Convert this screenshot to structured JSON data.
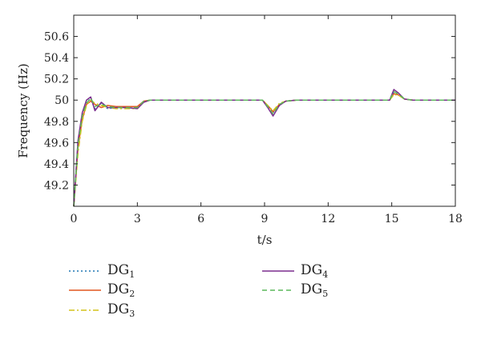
{
  "chart_data": {
    "type": "line",
    "xlabel": "t/s",
    "ylabel": "Frequency (Hz)",
    "xlim": [
      0,
      18
    ],
    "ylim": [
      49.0,
      50.8
    ],
    "xticks": [
      0,
      3,
      6,
      9,
      12,
      15,
      18
    ],
    "yticks": [
      49.2,
      49.4,
      49.6,
      49.8,
      50,
      50.2,
      50.4,
      50.6
    ],
    "grid": false,
    "legend_position": "below",
    "series": [
      {
        "name": "DG1",
        "base": "DG",
        "sub": "1",
        "color": "#1f77b4",
        "dash": "2,3",
        "x": [
          0,
          0.2,
          0.4,
          0.6,
          0.8,
          1.0,
          1.3,
          1.6,
          2.0,
          2.5,
          3.0,
          3.3,
          3.6,
          4.5,
          6.0,
          7.5,
          8.9,
          9.15,
          9.4,
          9.7,
          10.0,
          10.5,
          12.0,
          14.0,
          14.9,
          15.1,
          15.3,
          15.6,
          16.0,
          18.0
        ],
        "y": [
          49.0,
          49.6,
          49.85,
          49.98,
          50.01,
          49.92,
          49.97,
          49.92,
          49.93,
          49.93,
          49.92,
          49.98,
          50.0,
          50.0,
          50.0,
          50.0,
          50.0,
          49.94,
          49.88,
          49.96,
          49.99,
          50.0,
          50.0,
          50.0,
          50.0,
          50.07,
          50.06,
          50.01,
          50.0,
          50.0
        ]
      },
      {
        "name": "DG2",
        "base": "DG",
        "sub": "2",
        "color": "#e2571e",
        "dash": "",
        "x": [
          0,
          0.2,
          0.4,
          0.6,
          0.8,
          1.0,
          1.3,
          1.6,
          2.0,
          2.5,
          3.0,
          3.3,
          3.6,
          4.5,
          6.0,
          7.5,
          8.9,
          9.15,
          9.4,
          9.7,
          10.0,
          10.5,
          12.0,
          14.0,
          14.9,
          15.1,
          15.3,
          15.6,
          16.0,
          18.0
        ],
        "y": [
          49.0,
          49.55,
          49.82,
          49.96,
          49.99,
          49.96,
          49.93,
          49.95,
          49.94,
          49.94,
          49.94,
          49.99,
          50.0,
          50.0,
          50.0,
          50.0,
          50.0,
          49.95,
          49.89,
          49.96,
          49.99,
          50.0,
          50.0,
          50.0,
          50.0,
          50.06,
          50.05,
          50.01,
          50.0,
          50.0
        ]
      },
      {
        "name": "DG3",
        "base": "DG",
        "sub": "3",
        "color": "#d4c21a",
        "dash": "7,3,2,3",
        "x": [
          0,
          0.2,
          0.4,
          0.6,
          0.8,
          1.0,
          1.3,
          1.6,
          2.0,
          2.5,
          3.0,
          3.3,
          3.6,
          4.5,
          6.0,
          7.5,
          8.9,
          9.15,
          9.4,
          9.7,
          10.0,
          10.5,
          12.0,
          14.0,
          14.9,
          15.1,
          15.3,
          15.6,
          16.0,
          18.0
        ],
        "y": [
          49.0,
          49.5,
          49.8,
          49.95,
          50.0,
          49.97,
          49.95,
          49.93,
          49.92,
          49.92,
          49.92,
          49.98,
          50.0,
          50.0,
          50.0,
          50.0,
          50.0,
          49.95,
          49.9,
          49.97,
          49.99,
          50.0,
          50.0,
          50.0,
          50.0,
          50.05,
          50.05,
          50.01,
          50.0,
          50.0
        ]
      },
      {
        "name": "DG4",
        "base": "DG",
        "sub": "4",
        "color": "#7b2d8e",
        "dash": "",
        "x": [
          0,
          0.2,
          0.4,
          0.6,
          0.8,
          1.0,
          1.3,
          1.6,
          2.0,
          2.5,
          3.0,
          3.3,
          3.6,
          4.5,
          6.0,
          7.5,
          8.9,
          9.15,
          9.4,
          9.7,
          10.0,
          10.5,
          12.0,
          14.0,
          14.9,
          15.1,
          15.3,
          15.6,
          16.0,
          18.0
        ],
        "y": [
          49.0,
          49.62,
          49.88,
          50.0,
          50.03,
          49.9,
          49.98,
          49.93,
          49.93,
          49.93,
          49.92,
          49.98,
          50.0,
          50.0,
          50.0,
          50.0,
          50.0,
          49.93,
          49.85,
          49.95,
          49.99,
          50.0,
          50.0,
          50.0,
          50.0,
          50.1,
          50.07,
          50.01,
          50.0,
          50.0
        ]
      },
      {
        "name": "DG5",
        "base": "DG",
        "sub": "5",
        "color": "#5cb85c",
        "dash": "6,4",
        "x": [
          0,
          0.2,
          0.4,
          0.6,
          0.8,
          1.0,
          1.3,
          1.6,
          2.0,
          2.5,
          3.0,
          3.3,
          3.6,
          4.5,
          6.0,
          7.5,
          8.9,
          9.15,
          9.4,
          9.7,
          10.0,
          10.5,
          12.0,
          14.0,
          14.9,
          15.1,
          15.3,
          15.6,
          16.0,
          18.0
        ],
        "y": [
          49.0,
          49.58,
          49.85,
          49.97,
          50.02,
          49.94,
          49.96,
          49.94,
          49.93,
          49.93,
          49.93,
          49.99,
          50.0,
          50.0,
          50.0,
          50.0,
          50.0,
          49.94,
          49.87,
          49.96,
          49.99,
          50.0,
          50.0,
          50.0,
          50.0,
          50.08,
          50.06,
          50.01,
          50.0,
          50.0
        ]
      }
    ]
  }
}
